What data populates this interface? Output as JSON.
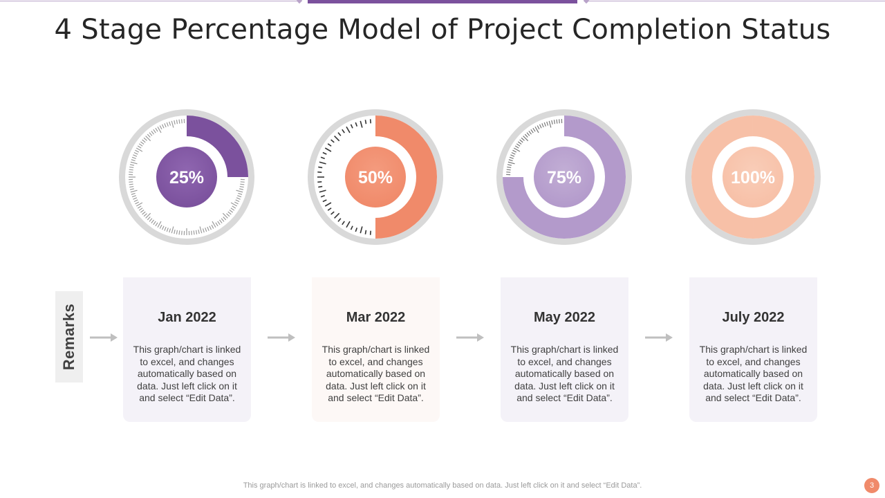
{
  "title": "4 Stage Percentage Model of Project Completion Status",
  "remarks_label": "Remarks",
  "colors": {
    "purple": "#7b519d",
    "purple_light": "#b39acb",
    "orange": "#f08a6a",
    "peach": "#f7c0a7",
    "ring_gray": "#d9d9d9"
  },
  "chart_data": {
    "type": "gauge",
    "title": "4 Stage Percentage Model of Project Completion Status",
    "categories": [
      "Jan 2022",
      "Mar 2022",
      "May 2022",
      "July 2022"
    ],
    "values": [
      25,
      50,
      75,
      100
    ],
    "unit": "%",
    "labels": [
      "25%",
      "50%",
      "75%",
      "100%"
    ]
  },
  "stages": [
    {
      "date": "Jan 2022",
      "percent_label": "25%",
      "text": "This graph/chart is linked to excel, and changes automatically based on data. Just left click on it and select “Edit Data”."
    },
    {
      "date": "Mar 2022",
      "percent_label": "50%",
      "text": "This graph/chart is linked to excel, and changes automatically based on data. Just left click on it and select “Edit Data”."
    },
    {
      "date": "May 2022",
      "percent_label": "75%",
      "text": "This graph/chart is linked to excel, and changes automatically based on data. Just left click on it and select “Edit Data”."
    },
    {
      "date": "July 2022",
      "percent_label": "100%",
      "text": "This graph/chart is linked to excel, and changes automatically based on data. Just left click on it and select “Edit Data”."
    }
  ],
  "footer": {
    "note": "This graph/chart is linked to excel,  and changes automatically based on data. Just left click on it and select “Edit Data”.",
    "page_number": "3"
  }
}
